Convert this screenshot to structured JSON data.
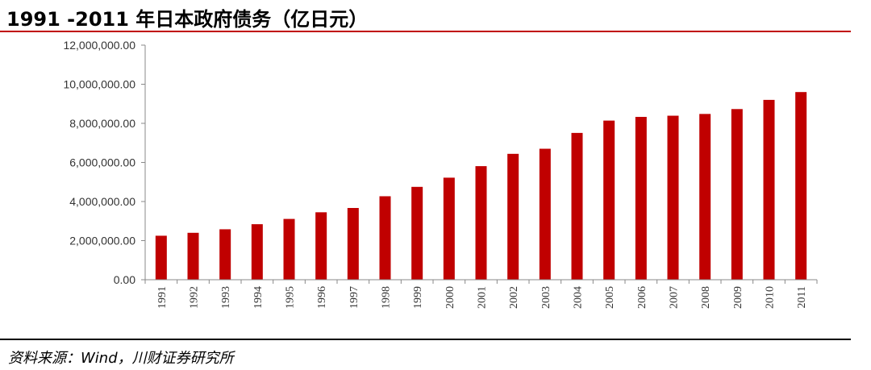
{
  "header": {
    "title": "1991 -2011 年日本政府债务（亿日元）"
  },
  "footer": {
    "source": "资料来源：Wind，川财证券研究所"
  },
  "colors": {
    "bar": "#c00000",
    "rule": "#c00000"
  },
  "chart_data": {
    "type": "bar",
    "title": "1991 -2011 年日本政府债务（亿日元）",
    "xlabel": "",
    "ylabel": "",
    "ylim": [
      0,
      12000000
    ],
    "yticks": [
      "0.00",
      "2,000,000.00",
      "4,000,000.00",
      "6,000,000.00",
      "8,000,000.00",
      "10,000,000.00",
      "12,000,000.00"
    ],
    "ytick_values": [
      0,
      2000000,
      4000000,
      6000000,
      8000000,
      10000000,
      12000000
    ],
    "grid": false,
    "legend": "none",
    "categories": [
      "1991",
      "1992",
      "1993",
      "1994",
      "1995",
      "1996",
      "1997",
      "1998",
      "1999",
      "2000",
      "2001",
      "2002",
      "2003",
      "2004",
      "2005",
      "2006",
      "2007",
      "2008",
      "2009",
      "2010",
      "2011"
    ],
    "values": [
      2250000,
      2400000,
      2580000,
      2840000,
      3110000,
      3450000,
      3670000,
      4270000,
      4750000,
      5220000,
      5810000,
      6440000,
      6700000,
      7510000,
      8140000,
      8330000,
      8390000,
      8480000,
      8730000,
      9200000,
      9600000
    ]
  }
}
